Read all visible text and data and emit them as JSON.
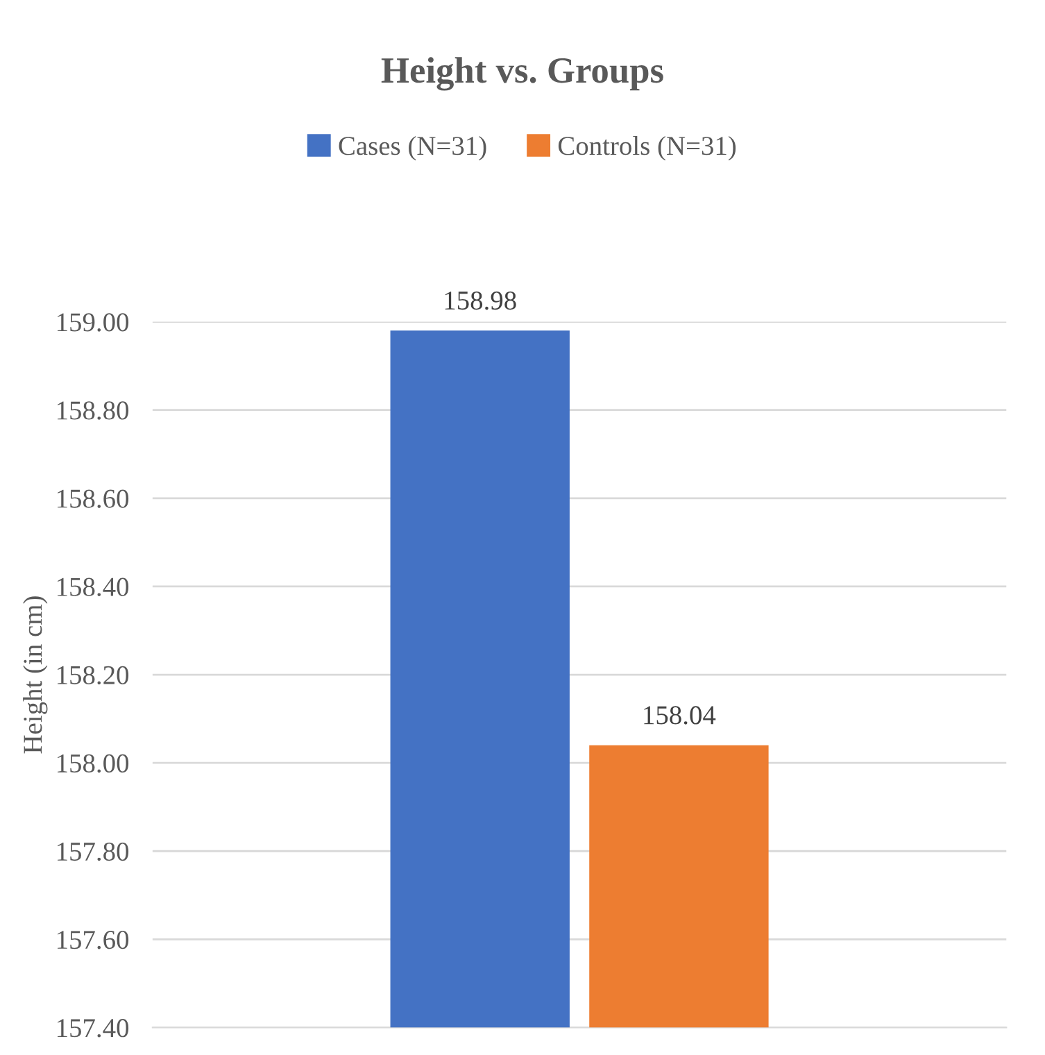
{
  "chart_data": {
    "type": "bar",
    "title": "Height vs. Groups",
    "ylabel": "Height (in cm)",
    "categories": [
      null
    ],
    "series": [
      {
        "name": "Cases (N=31)",
        "color": "#4472c4",
        "values": [
          158.98
        ]
      },
      {
        "name": "Controls (N=31)",
        "color": "#ed7d31",
        "values": [
          158.04
        ]
      }
    ],
    "ylim": [
      157.4,
      159.0
    ],
    "yticks": [
      {
        "value": 157.4,
        "label": "157.40"
      },
      {
        "value": 157.6,
        "label": "157.60"
      },
      {
        "value": 157.8,
        "label": "157.80"
      },
      {
        "value": 158.0,
        "label": "158.00"
      },
      {
        "value": 158.2,
        "label": "158.20"
      },
      {
        "value": 158.4,
        "label": "158.40"
      },
      {
        "value": 158.6,
        "label": "158.60"
      },
      {
        "value": 158.8,
        "label": "158.80"
      },
      {
        "value": 159.0,
        "label": "159.00"
      }
    ],
    "grid": "y",
    "legend": "top",
    "data_labels": true
  }
}
